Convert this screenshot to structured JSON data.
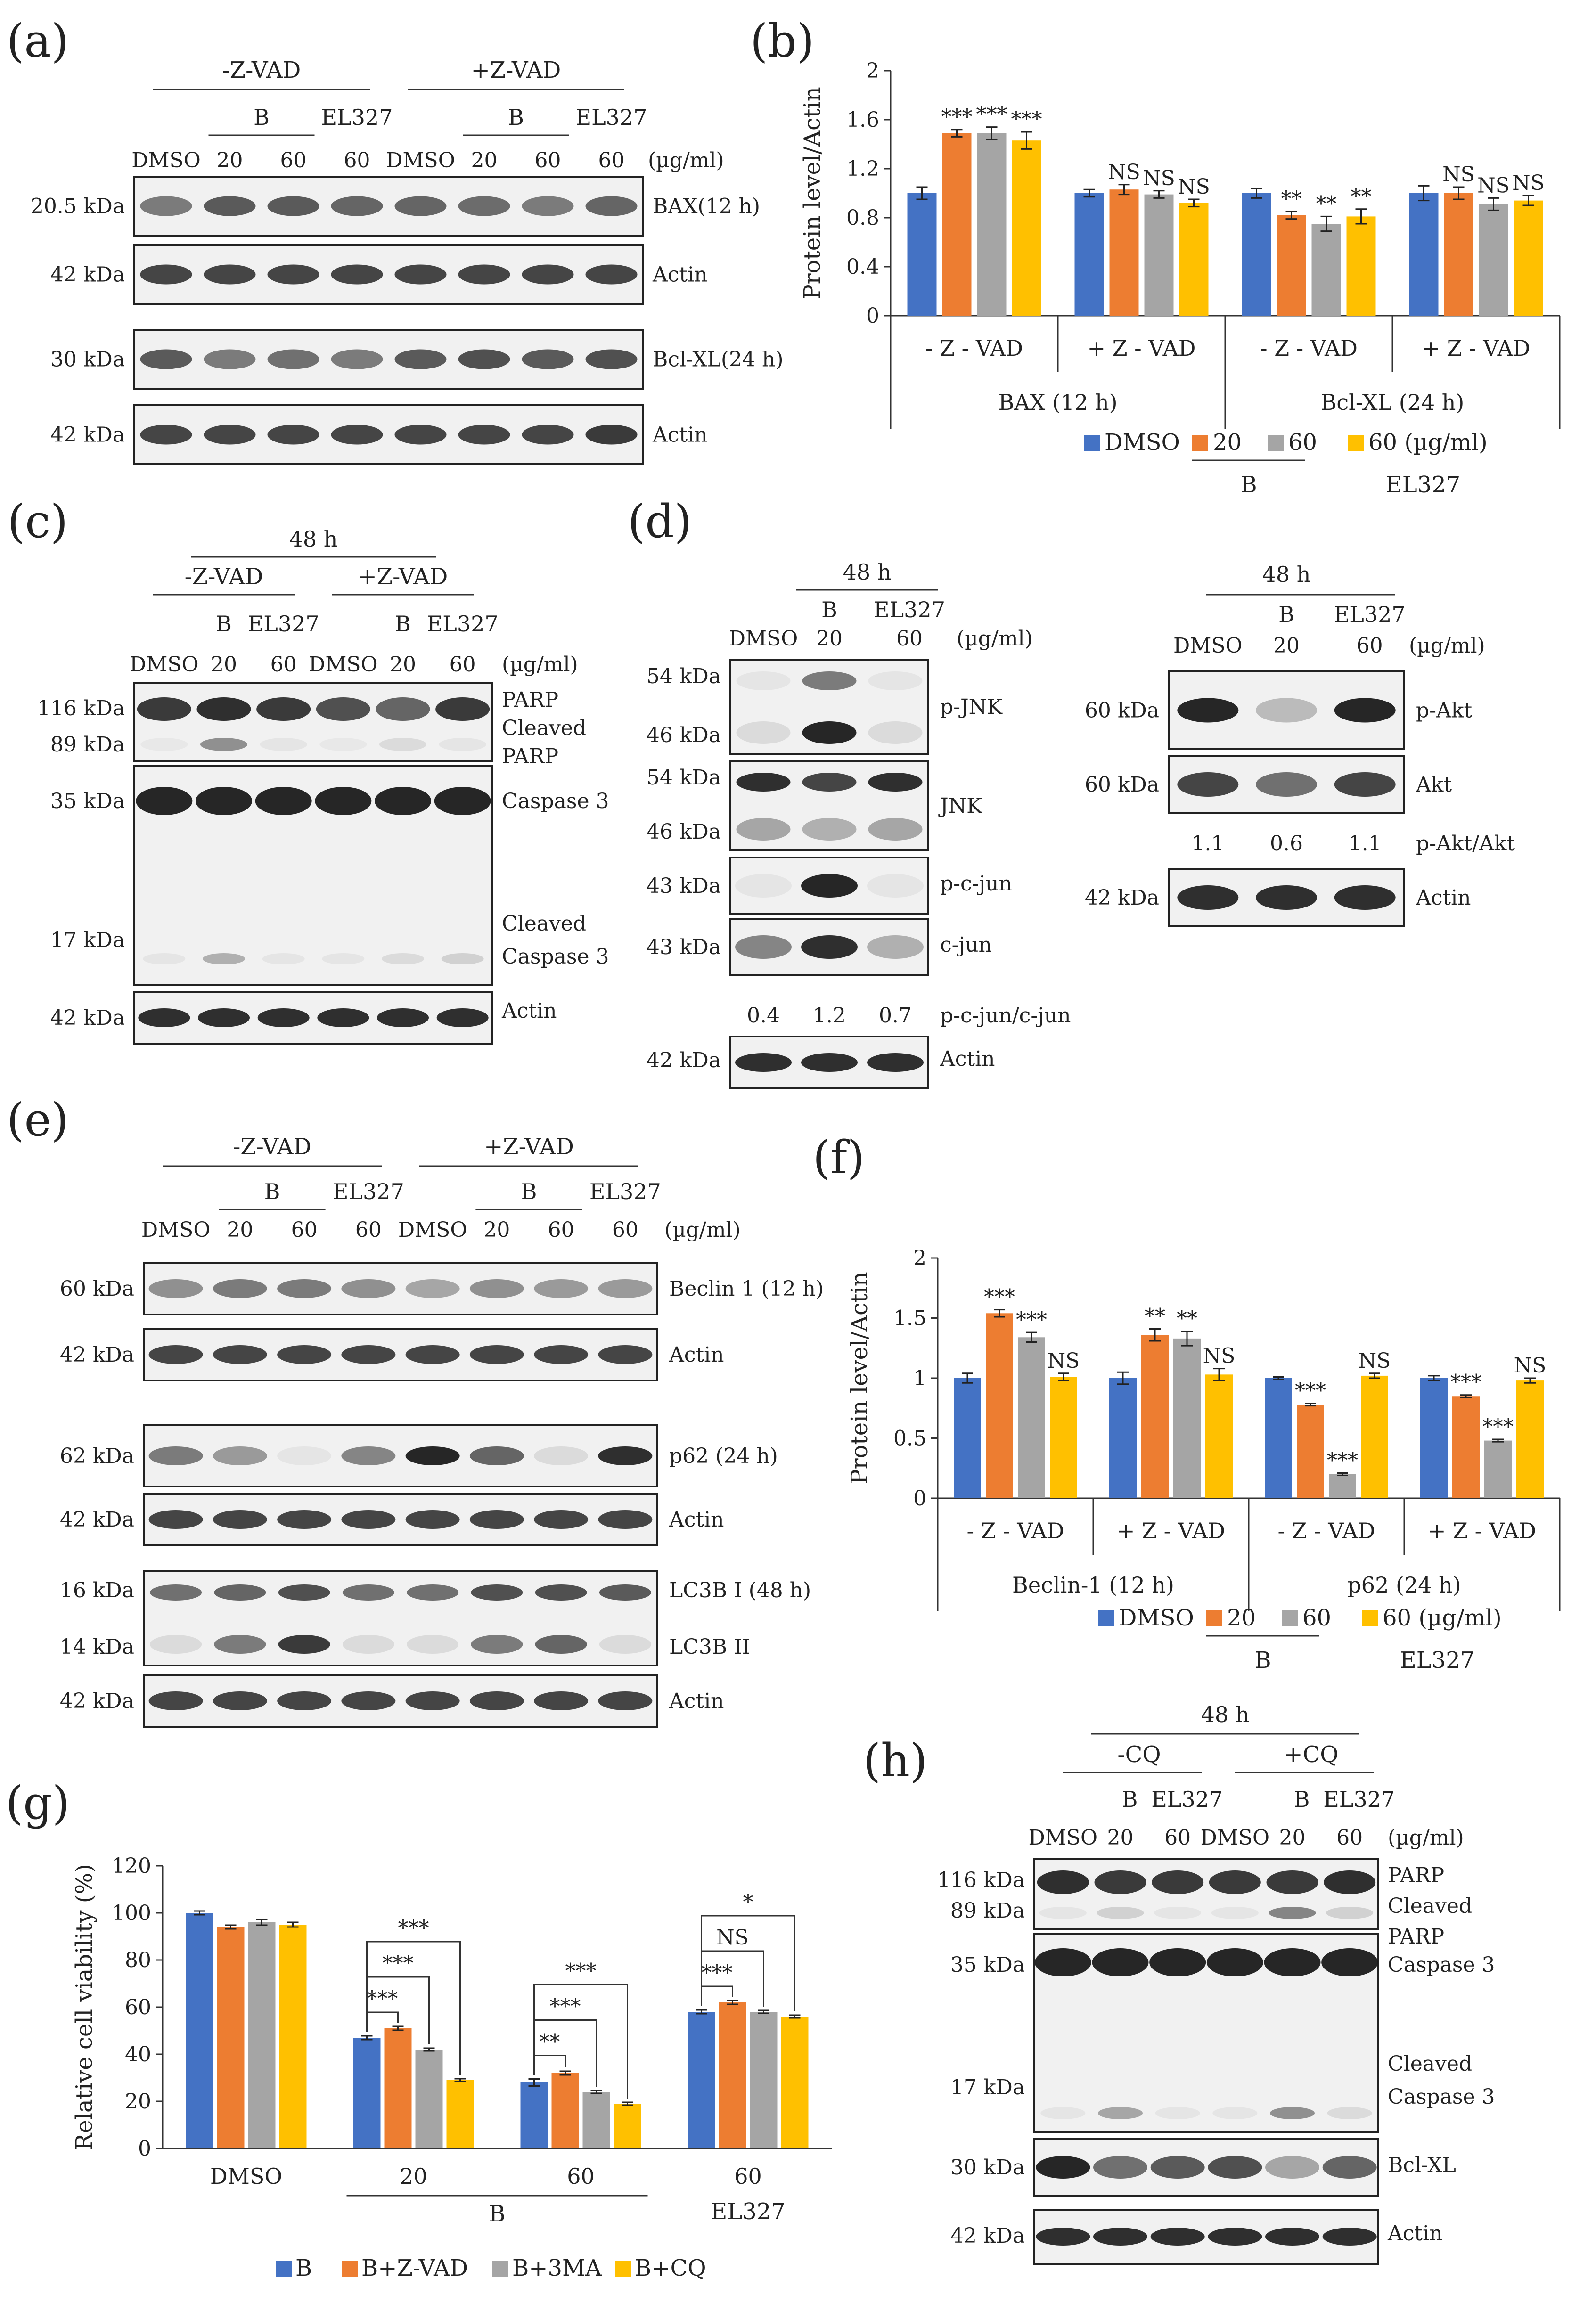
{
  "colors": {
    "dmso": "#4472C4",
    "b20": "#ED7D31",
    "b60": "#A5A5A5",
    "el327": "#FFC000",
    "blot_bg": "#f1f1f1",
    "band": "#1a1a1a"
  },
  "panel_labels": [
    "(a)",
    "(b)",
    "(c)",
    "(d)",
    "(e)",
    "(f)",
    "(g)",
    "(h)"
  ],
  "units": "(µg/ml)",
  "panel_a": {
    "groups": [
      "-Z-VAD",
      "+Z-VAD"
    ],
    "sub": [
      "B",
      "EL327",
      "B",
      "EL327"
    ],
    "lanes": [
      "DMSO",
      "20",
      "60",
      "60",
      "DMSO",
      "20",
      "60",
      "60"
    ],
    "blots": [
      {
        "kda": "20.5 kDa",
        "label": "BAX(12 h)",
        "bands": [
          0.55,
          0.7,
          0.7,
          0.65,
          0.65,
          0.62,
          0.55,
          0.65
        ]
      },
      {
        "kda": "42 kDa",
        "label": "Actin",
        "bands": [
          0.8,
          0.8,
          0.8,
          0.8,
          0.8,
          0.8,
          0.8,
          0.8
        ]
      },
      {
        "kda": "30 kDa",
        "label": "Bcl-XL(24 h)",
        "bands": [
          0.7,
          0.55,
          0.6,
          0.55,
          0.7,
          0.75,
          0.7,
          0.75
        ]
      },
      {
        "kda": "42 kDa",
        "label": "Actin",
        "bands": [
          0.8,
          0.8,
          0.8,
          0.8,
          0.8,
          0.8,
          0.8,
          0.85
        ]
      }
    ]
  },
  "panel_c": {
    "time": "48 h",
    "groups": [
      "-Z-VAD",
      "+Z-VAD"
    ],
    "sub": [
      "B",
      "EL327",
      "B",
      "EL327"
    ],
    "lanes": [
      "DMSO",
      "20",
      "60",
      "DMSO",
      "20",
      "60"
    ],
    "kdas": [
      "116 kDa",
      "89 kDa",
      "35 kDa",
      "17 kDa",
      "42 kDa"
    ],
    "labels": [
      "PARP",
      "Cleaved PARP",
      "Caspase 3",
      "Cleaved Caspase 3",
      "Actin"
    ]
  },
  "panel_d_left": {
    "time": "48 h",
    "sub": [
      "B",
      "EL327"
    ],
    "lanes": [
      "DMSO",
      "20",
      "60"
    ],
    "kdas": [
      "54 kDa",
      "46 kDa",
      "54 kDa",
      "46 kDa",
      "43 kDa",
      "43 kDa",
      "42 kDa"
    ],
    "labels": [
      "p-JNK",
      "JNK",
      "p-c-jun",
      "c-jun",
      "Actin"
    ],
    "ratio_label": "p-c-jun/c-jun",
    "ratios": [
      "0.4",
      "1.2",
      "0.7"
    ]
  },
  "panel_d_right": {
    "time": "48 h",
    "sub": [
      "B",
      "EL327"
    ],
    "lanes": [
      "DMSO",
      "20",
      "60"
    ],
    "kdas": [
      "60 kDa",
      "60 kDa",
      "42 kDa"
    ],
    "labels": [
      "p-Akt",
      "Akt",
      "Actin"
    ],
    "ratio_label": "p-Akt/Akt",
    "ratios": [
      "1.1",
      "0.6",
      "1.1"
    ]
  },
  "panel_e": {
    "groups": [
      "-Z-VAD",
      "+Z-VAD"
    ],
    "sub": [
      "B",
      "EL327",
      "B",
      "EL327"
    ],
    "lanes": [
      "DMSO",
      "20",
      "60",
      "60",
      "DMSO",
      "20",
      "60",
      "60"
    ],
    "blots": [
      {
        "kda": "60 kDa",
        "label": "Beclin 1 (12 h)",
        "bands": [
          0.45,
          0.55,
          0.55,
          0.45,
          0.35,
          0.45,
          0.4,
          0.4
        ]
      },
      {
        "kda": "42 kDa",
        "label": "Actin",
        "bands": [
          0.8,
          0.8,
          0.8,
          0.8,
          0.8,
          0.8,
          0.8,
          0.8
        ]
      },
      {
        "kda": "62 kDa",
        "label": "p62 (24 h)",
        "bands": [
          0.55,
          0.4,
          0.05,
          0.5,
          0.95,
          0.65,
          0.1,
          0.9
        ]
      },
      {
        "kda": "42 kDa",
        "label": "Actin",
        "bands": [
          0.8,
          0.8,
          0.8,
          0.8,
          0.8,
          0.8,
          0.8,
          0.8
        ]
      },
      {
        "kda": "16 kDa",
        "label": "LC3B I (48 h)",
        "kda2": "14 kDa",
        "label2": "LC3B II",
        "bands": [
          0.6,
          0.65,
          0.75,
          0.6,
          0.6,
          0.75,
          0.75,
          0.7
        ],
        "bands2": [
          0.1,
          0.55,
          0.85,
          0.1,
          0.1,
          0.55,
          0.65,
          0.1
        ]
      },
      {
        "kda": "42 kDa",
        "label": "Actin",
        "bands": [
          0.8,
          0.8,
          0.8,
          0.8,
          0.8,
          0.8,
          0.8,
          0.8
        ]
      }
    ]
  },
  "panel_h": {
    "time": "48 h",
    "groups": [
      "-CQ",
      "+CQ"
    ],
    "sub": [
      "B",
      "EL327",
      "B",
      "EL327"
    ],
    "lanes": [
      "DMSO",
      "20",
      "60",
      "DMSO",
      "20",
      "60"
    ],
    "kdas": [
      "116 kDa",
      "89 kDa",
      "35 kDa",
      "17 kDa",
      "30 kDa",
      "42 kDa"
    ],
    "labels": [
      "PARP",
      "Cleaved PARP",
      "Caspase 3",
      "Cleaved Caspase 3",
      "Bcl-XL",
      "Actin"
    ]
  },
  "chart_data": [
    {
      "type": "bar",
      "panel": "b",
      "ylabel": "Protein level/Actin",
      "ylim": [
        0,
        2
      ],
      "yticks": [
        "0",
        "0.4",
        "0.8",
        "1.2",
        "1.6",
        "2"
      ],
      "groups": [
        "- Z - VAD",
        "+ Z - VAD",
        "- Z - VAD",
        "+ Z - VAD"
      ],
      "supergroups": [
        "BAX (12 h)",
        "Bcl-XL (24 h)"
      ],
      "series": [
        {
          "name": "DMSO",
          "values": [
            1.0,
            1.0,
            1.0,
            1.0
          ],
          "err": [
            0.05,
            0.03,
            0.04,
            0.06
          ]
        },
        {
          "name": "20",
          "values": [
            1.49,
            1.03,
            0.82,
            1.0
          ],
          "err": [
            0.03,
            0.04,
            0.03,
            0.05
          ]
        },
        {
          "name": "60",
          "values": [
            1.49,
            0.99,
            0.75,
            0.91
          ],
          "err": [
            0.05,
            0.03,
            0.06,
            0.05
          ]
        },
        {
          "name": "60",
          "values": [
            1.43,
            0.92,
            0.81,
            0.94
          ],
          "err": [
            0.07,
            0.03,
            0.06,
            0.04
          ]
        }
      ],
      "annotations": [
        [
          "***",
          "***",
          "***"
        ],
        [
          "NS",
          "NS",
          "NS"
        ],
        [
          "**",
          "**",
          "**"
        ],
        [
          "NS",
          "NS",
          "NS"
        ]
      ],
      "legend": [
        "DMSO",
        "20",
        "60",
        "60 (µg/ml)"
      ],
      "legend_b": "B",
      "legend_el": "EL327"
    },
    {
      "type": "bar",
      "panel": "f",
      "ylabel": "Protein level/Actin",
      "ylim": [
        0,
        2
      ],
      "yticks": [
        "0",
        "0.5",
        "1",
        "1.5",
        "2"
      ],
      "groups": [
        "- Z - VAD",
        "+ Z - VAD",
        "- Z - VAD",
        "+ Z - VAD"
      ],
      "supergroups": [
        "Beclin-1 (12 h)",
        "p62 (24 h)"
      ],
      "series": [
        {
          "name": "DMSO",
          "values": [
            1.0,
            1.0,
            1.0,
            1.0
          ],
          "err": [
            0.04,
            0.05,
            0.01,
            0.02
          ]
        },
        {
          "name": "20",
          "values": [
            1.54,
            1.36,
            0.78,
            0.85
          ],
          "err": [
            0.03,
            0.05,
            0.01,
            0.01
          ]
        },
        {
          "name": "60",
          "values": [
            1.34,
            1.33,
            0.2,
            0.48
          ],
          "err": [
            0.04,
            0.06,
            0.01,
            0.01
          ]
        },
        {
          "name": "60",
          "values": [
            1.01,
            1.03,
            1.02,
            0.98
          ],
          "err": [
            0.03,
            0.05,
            0.02,
            0.02
          ]
        }
      ],
      "annotations": [
        [
          "***",
          "***",
          "NS"
        ],
        [
          "**",
          "**",
          "NS"
        ],
        [
          "***",
          "***",
          "NS"
        ],
        [
          "***",
          "***",
          "NS"
        ]
      ],
      "legend": [
        "DMSO",
        "20",
        "60",
        "60 (µg/ml)"
      ],
      "legend_b": "B",
      "legend_el": "EL327"
    },
    {
      "type": "bar",
      "panel": "g",
      "ylabel": "Relative cell viability (%)",
      "ylim": [
        0,
        120
      ],
      "yticks": [
        "0",
        "20",
        "40",
        "60",
        "80",
        "100",
        "120"
      ],
      "categories": [
        "DMSO",
        "20",
        "60",
        "60"
      ],
      "xsub_b": "B",
      "xsub_el": "EL327",
      "series": [
        {
          "name": "B",
          "values": [
            100,
            47,
            28,
            58
          ],
          "err": [
            0.8,
            0.8,
            1.5,
            0.8
          ]
        },
        {
          "name": "B+Z-VAD",
          "values": [
            94,
            51,
            32,
            62
          ],
          "err": [
            0.8,
            0.8,
            0.8,
            0.8
          ]
        },
        {
          "name": "B+3MA",
          "values": [
            96,
            42,
            24,
            58
          ],
          "err": [
            1.2,
            0.6,
            0.6,
            0.6
          ]
        },
        {
          "name": "B+CQ",
          "values": [
            95,
            29,
            19,
            56
          ],
          "err": [
            1.0,
            0.6,
            0.6,
            0.6
          ]
        }
      ],
      "significance": [
        {
          "group": 1,
          "labels": [
            "***",
            "***",
            "***"
          ]
        },
        {
          "group": 2,
          "labels": [
            "**",
            "***",
            "***"
          ]
        },
        {
          "group": 3,
          "labels": [
            "***",
            "NS",
            "*"
          ]
        }
      ]
    }
  ]
}
